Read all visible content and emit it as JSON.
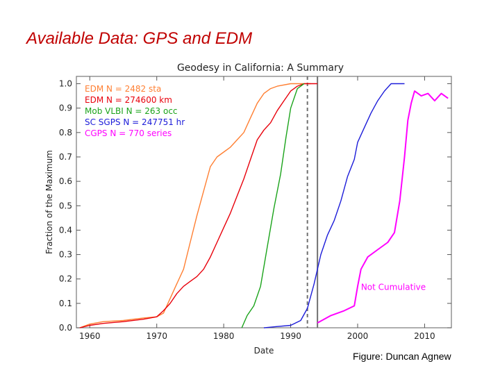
{
  "slide": {
    "title": "Available Data: GPS and EDM",
    "credit": "Figure: Duncan Agnew"
  },
  "chart_data": {
    "type": "line",
    "title": "Geodesy in California: A Summary",
    "xlabel": "Date",
    "ylabel": "Fraction of the Maximum",
    "xlim": [
      1958,
      2014
    ],
    "ylim": [
      0,
      1.03
    ],
    "xticks": [
      1960,
      1970,
      1980,
      1990,
      2000,
      2010
    ],
    "yticks": [
      0.0,
      0.1,
      0.2,
      0.3,
      0.4,
      0.5,
      0.6,
      0.7,
      0.8,
      0.9,
      1.0
    ],
    "tick_format_y": "0.1",
    "grid": false,
    "legend_position": "top-left",
    "vlines": [
      {
        "x": 1992.5,
        "style": "dashed",
        "color": "#707070"
      },
      {
        "x": 1994,
        "style": "solid",
        "color": "#707070"
      }
    ],
    "annotations": [
      {
        "text": "Not Cumulative",
        "x": 2000.5,
        "y": 0.155,
        "color": "#ff00ff"
      }
    ],
    "series": [
      {
        "name": "EDM N = 2482 sta",
        "color": "#ff7f32",
        "points": [
          [
            1958.5,
            0
          ],
          [
            1960,
            0.015
          ],
          [
            1962,
            0.025
          ],
          [
            1965,
            0.03
          ],
          [
            1968,
            0.04
          ],
          [
            1970,
            0.045
          ],
          [
            1971,
            0.06
          ],
          [
            1972,
            0.12
          ],
          [
            1973,
            0.18
          ],
          [
            1974,
            0.24
          ],
          [
            1975,
            0.35
          ],
          [
            1976,
            0.46
          ],
          [
            1977,
            0.56
          ],
          [
            1978,
            0.66
          ],
          [
            1979,
            0.7
          ],
          [
            1980,
            0.72
          ],
          [
            1981,
            0.74
          ],
          [
            1982,
            0.77
          ],
          [
            1983,
            0.8
          ],
          [
            1984,
            0.86
          ],
          [
            1985,
            0.92
          ],
          [
            1986,
            0.96
          ],
          [
            1987,
            0.98
          ],
          [
            1988,
            0.99
          ],
          [
            1990,
            1.0
          ],
          [
            1993,
            1.0
          ]
        ]
      },
      {
        "name": "EDM N = 274600 km",
        "color": "#e8000b",
        "points": [
          [
            1958.5,
            0
          ],
          [
            1960,
            0.01
          ],
          [
            1962,
            0.018
          ],
          [
            1965,
            0.025
          ],
          [
            1968,
            0.035
          ],
          [
            1970,
            0.045
          ],
          [
            1971,
            0.07
          ],
          [
            1972,
            0.1
          ],
          [
            1973,
            0.14
          ],
          [
            1974,
            0.17
          ],
          [
            1975,
            0.19
          ],
          [
            1976,
            0.21
          ],
          [
            1977,
            0.24
          ],
          [
            1978,
            0.29
          ],
          [
            1979,
            0.35
          ],
          [
            1980,
            0.41
          ],
          [
            1981,
            0.47
          ],
          [
            1982,
            0.54
          ],
          [
            1983,
            0.61
          ],
          [
            1984,
            0.69
          ],
          [
            1985,
            0.77
          ],
          [
            1986,
            0.81
          ],
          [
            1987,
            0.84
          ],
          [
            1988,
            0.89
          ],
          [
            1989,
            0.93
          ],
          [
            1990,
            0.97
          ],
          [
            1991,
            0.99
          ],
          [
            1992,
            1.0
          ],
          [
            1994,
            1.0
          ]
        ]
      },
      {
        "name": "Mob VLBI N = 263 occ",
        "color": "#1aa31a",
        "points": [
          [
            1982.7,
            0
          ],
          [
            1983.5,
            0.05
          ],
          [
            1984.5,
            0.09
          ],
          [
            1985.5,
            0.17
          ],
          [
            1986.5,
            0.33
          ],
          [
            1987.5,
            0.49
          ],
          [
            1988.5,
            0.63
          ],
          [
            1989.3,
            0.78
          ],
          [
            1990,
            0.9
          ],
          [
            1991,
            0.98
          ],
          [
            1992,
            1.0
          ]
        ]
      },
      {
        "name": "SC SGPS N = 247751 hr",
        "color": "#1c1cd9",
        "points": [
          [
            1986,
            0
          ],
          [
            1988,
            0.005
          ],
          [
            1990,
            0.01
          ],
          [
            1991.5,
            0.03
          ],
          [
            1992.5,
            0.08
          ],
          [
            1993.5,
            0.18
          ],
          [
            1994.5,
            0.3
          ],
          [
            1995.5,
            0.38
          ],
          [
            1996.5,
            0.44
          ],
          [
            1997.5,
            0.52
          ],
          [
            1998.5,
            0.62
          ],
          [
            1999.5,
            0.69
          ],
          [
            2000,
            0.76
          ],
          [
            2001,
            0.82
          ],
          [
            2002,
            0.88
          ],
          [
            2003,
            0.93
          ],
          [
            2004,
            0.97
          ],
          [
            2005,
            1.0
          ],
          [
            2007,
            1.0
          ]
        ]
      },
      {
        "name": "CGPS N = 770 series",
        "color": "#ff00ff",
        "points": [
          [
            1994,
            0.02
          ],
          [
            1996,
            0.05
          ],
          [
            1998,
            0.07
          ],
          [
            1999.5,
            0.09
          ],
          [
            2000,
            0.17
          ],
          [
            2000.5,
            0.24
          ],
          [
            2001.5,
            0.29
          ],
          [
            2003,
            0.32
          ],
          [
            2004.5,
            0.35
          ],
          [
            2005.5,
            0.39
          ],
          [
            2006.3,
            0.52
          ],
          [
            2007,
            0.7
          ],
          [
            2007.5,
            0.85
          ],
          [
            2008,
            0.92
          ],
          [
            2008.5,
            0.97
          ],
          [
            2009.5,
            0.95
          ],
          [
            2010.5,
            0.96
          ],
          [
            2011.5,
            0.93
          ],
          [
            2012.5,
            0.96
          ],
          [
            2013.5,
            0.94
          ]
        ]
      }
    ]
  }
}
